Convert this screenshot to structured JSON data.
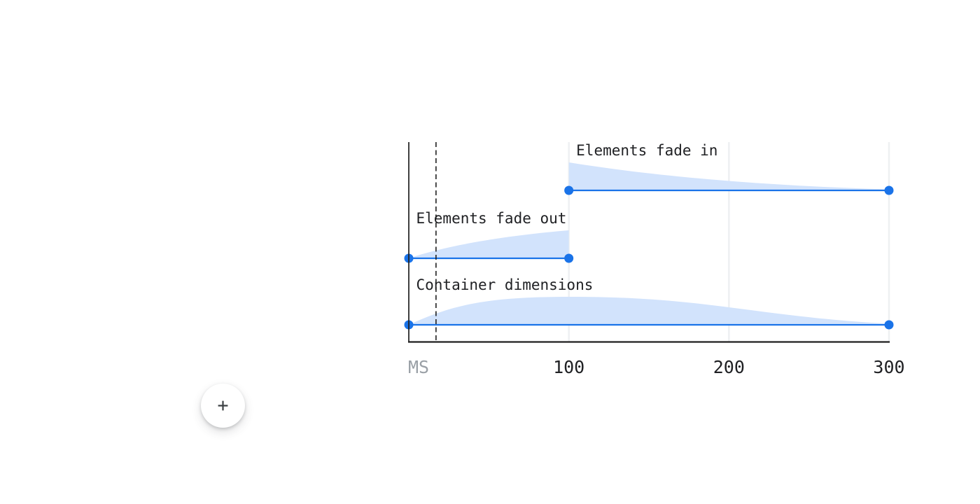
{
  "page": {
    "background": "#ffffff"
  },
  "chart_data": {
    "type": "area",
    "x_unit_label": "MS",
    "x_ticks": [
      "100",
      "200",
      "300"
    ],
    "x_tick_values_ms": [
      100,
      200,
      300
    ],
    "x_range_ms": [
      0,
      300
    ],
    "delay_marker_ms": 17,
    "grid": true,
    "tracks": [
      {
        "label": "Elements fade in",
        "start_ms": 100,
        "end_ms": 300,
        "easing": "decelerate"
      },
      {
        "label": "Elements fade out",
        "start_ms": 0,
        "end_ms": 100,
        "easing": "accelerate"
      },
      {
        "label": "Container dimensions",
        "start_ms": 0,
        "end_ms": 300,
        "easing": "standard"
      }
    ],
    "colors": {
      "track_line": "#1a73e8",
      "endpoint_dot": "#1a73e8",
      "easing_fill": "#d2e3fc",
      "axis": "#1f1f1f",
      "gridline": "#eef0f2",
      "tick_text": "#202124",
      "unit_text": "#9aa0a6"
    }
  },
  "fab": {
    "icon": "plus-icon",
    "glyph": "+",
    "background": "#ffffff",
    "icon_color": "#3c4043"
  }
}
